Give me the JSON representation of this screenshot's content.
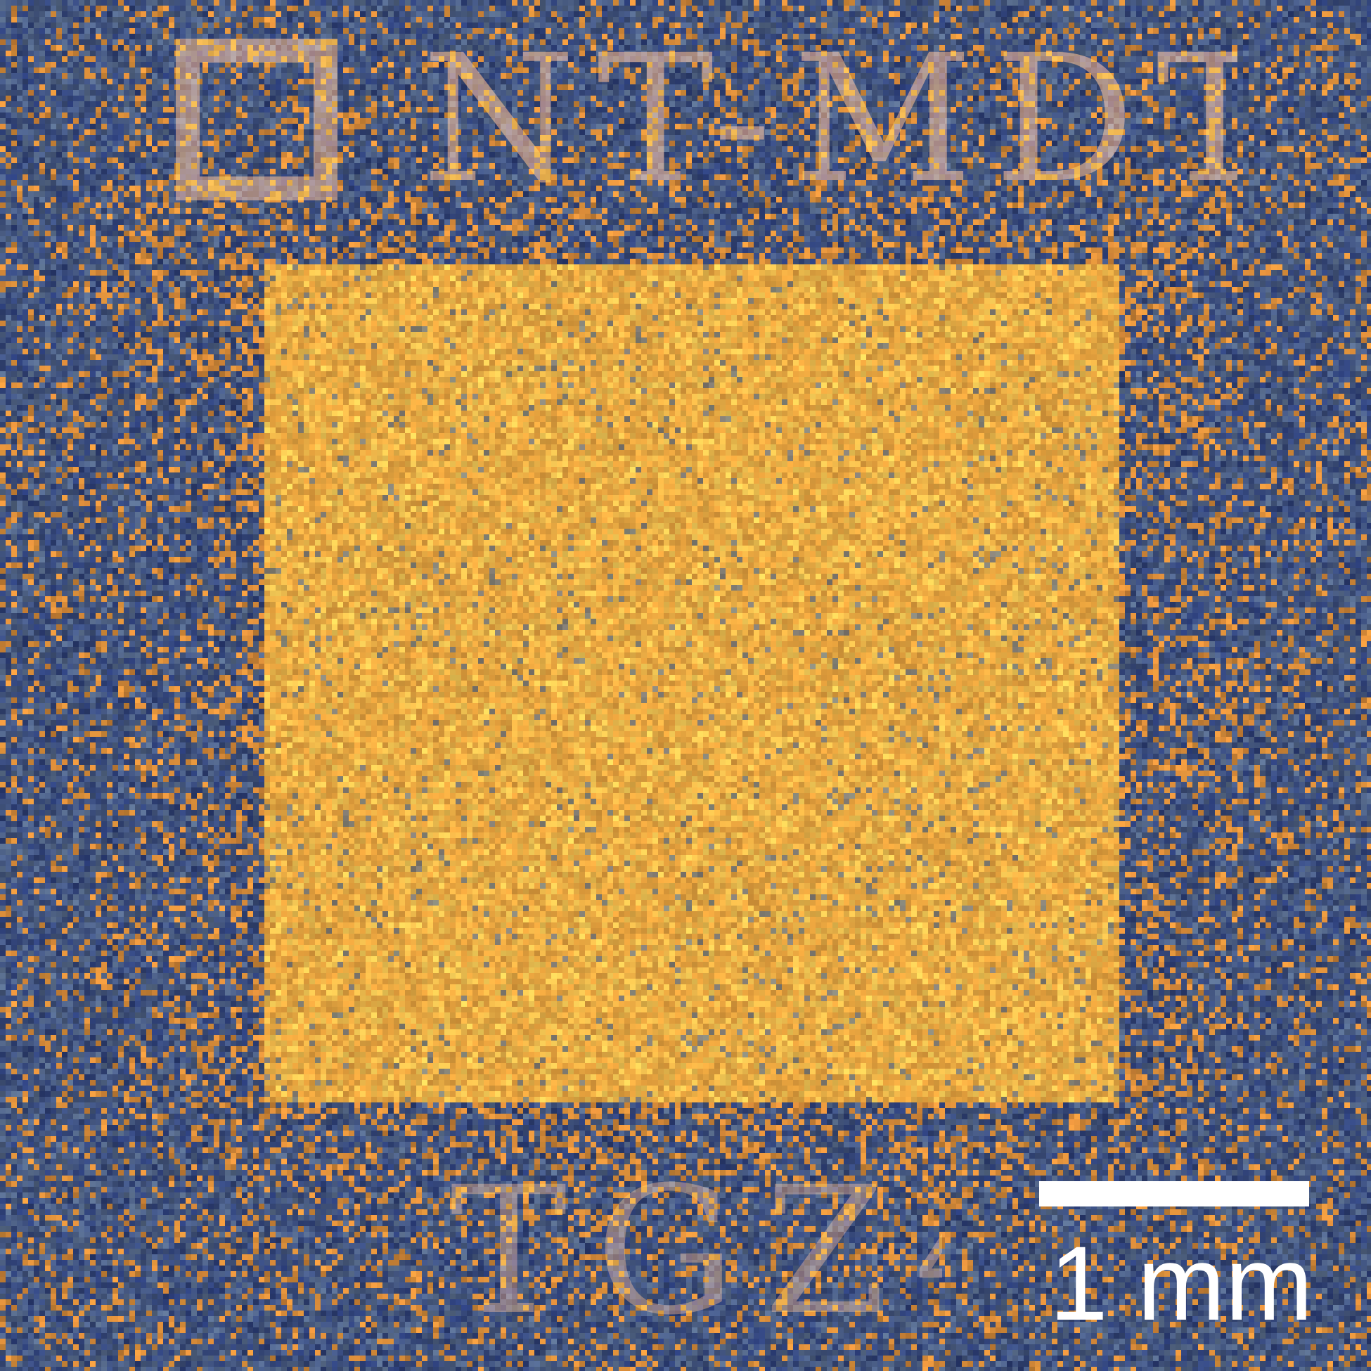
{
  "image": {
    "colors": {
      "background_dark": "#2b3d78",
      "background_mid": "#5a6e8c",
      "background_orange": "#d98a3a",
      "square_main": "#e8a23e",
      "square_bright": "#fbd25a",
      "scale_bar": "#ffffff"
    },
    "logo": {
      "text": "NT-MDT",
      "mark_icon": "nt-mdt-logo-mark-icon"
    },
    "sample_code": "TGZ4",
    "scale_bar": {
      "label": "1 mm"
    }
  }
}
